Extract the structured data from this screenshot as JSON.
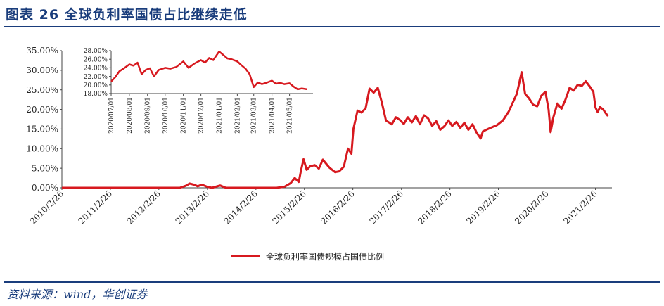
{
  "figure": {
    "title": "图表 26   全球负利率国债占比继续走低",
    "source": "资料来源：wind，华创证券"
  },
  "colors": {
    "line": "#d7191f",
    "accent": "#1a3d7c"
  },
  "chart_data": [
    {
      "type": "line",
      "title": "",
      "xlabel": "",
      "ylabel": "",
      "ylim": [
        0,
        35
      ],
      "yticks": [
        "0.00%",
        "5.00%",
        "10.00%",
        "15.00%",
        "20.00%",
        "25.00%",
        "30.00%",
        "35.00%"
      ],
      "xticks": [
        "2010/2/26",
        "2011/2/26",
        "2012/2/26",
        "2013/2/26",
        "2014/2/26",
        "2015/2/26",
        "2016/2/26",
        "2017/2/26",
        "2018/2/26",
        "2019/2/26",
        "2020/2/26",
        "2021/2/26"
      ],
      "legend": "bottom-center",
      "grid": false,
      "series": [
        {
          "name": "全球负利率国债规模占国债比例",
          "color": "#d7191f",
          "points": [
            [
              "2010-02-26",
              0.0
            ],
            [
              "2012-08-01",
              0.0
            ],
            [
              "2012-09-15",
              0.5
            ],
            [
              "2012-10-15",
              1.1
            ],
            [
              "2012-11-15",
              0.8
            ],
            [
              "2012-12-15",
              0.4
            ],
            [
              "2013-01-15",
              0.8
            ],
            [
              "2013-02-20",
              0.3
            ],
            [
              "2013-04-01",
              0.0
            ],
            [
              "2013-06-01",
              0.6
            ],
            [
              "2013-07-15",
              0.0
            ],
            [
              "2014-08-01",
              0.0
            ],
            [
              "2014-10-01",
              0.3
            ],
            [
              "2014-11-15",
              1.2
            ],
            [
              "2014-12-15",
              2.5
            ],
            [
              "2015-01-15",
              1.5
            ],
            [
              "2015-02-01",
              4.5
            ],
            [
              "2015-02-20",
              7.3
            ],
            [
              "2015-03-15",
              4.6
            ],
            [
              "2015-04-10",
              5.5
            ],
            [
              "2015-05-15",
              5.8
            ],
            [
              "2015-06-15",
              4.9
            ],
            [
              "2015-07-15",
              7.2
            ],
            [
              "2015-09-01",
              5.2
            ],
            [
              "2015-10-15",
              4.0
            ],
            [
              "2015-11-15",
              4.2
            ],
            [
              "2015-12-20",
              5.4
            ],
            [
              "2016-01-20",
              10.0
            ],
            [
              "2016-02-15",
              8.7
            ],
            [
              "2016-03-01",
              15.0
            ],
            [
              "2016-04-01",
              19.7
            ],
            [
              "2016-05-01",
              19.2
            ],
            [
              "2016-06-01",
              20.3
            ],
            [
              "2016-07-01",
              25.3
            ],
            [
              "2016-08-01",
              24.3
            ],
            [
              "2016-09-01",
              25.5
            ],
            [
              "2016-10-01",
              21.8
            ],
            [
              "2016-11-01",
              17.2
            ],
            [
              "2016-12-15",
              16.2
            ],
            [
              "2017-01-15",
              18.0
            ],
            [
              "2017-02-15",
              17.3
            ],
            [
              "2017-03-15",
              16.3
            ],
            [
              "2017-04-15",
              18.0
            ],
            [
              "2017-05-15",
              16.7
            ],
            [
              "2017-06-15",
              18.3
            ],
            [
              "2017-07-15",
              16.2
            ],
            [
              "2017-08-15",
              18.5
            ],
            [
              "2017-09-15",
              17.7
            ],
            [
              "2017-10-15",
              15.8
            ],
            [
              "2017-11-15",
              17.0
            ],
            [
              "2017-12-15",
              14.8
            ],
            [
              "2018-01-15",
              15.7
            ],
            [
              "2018-02-15",
              17.2
            ],
            [
              "2018-03-15",
              15.8
            ],
            [
              "2018-04-15",
              16.8
            ],
            [
              "2018-05-15",
              15.3
            ],
            [
              "2018-06-15",
              16.6
            ],
            [
              "2018-07-15",
              14.8
            ],
            [
              "2018-08-15",
              16.2
            ],
            [
              "2018-09-15",
              14.1
            ],
            [
              "2018-10-15",
              12.6
            ],
            [
              "2018-11-01",
              14.4
            ],
            [
              "2018-12-15",
              15.1
            ],
            [
              "2019-02-15",
              16.0
            ],
            [
              "2019-04-01",
              17.2
            ],
            [
              "2019-05-15",
              19.5
            ],
            [
              "2019-06-15",
              21.8
            ],
            [
              "2019-07-15",
              24.0
            ],
            [
              "2019-08-20",
              29.5
            ],
            [
              "2019-09-15",
              24.0
            ],
            [
              "2019-10-15",
              22.8
            ],
            [
              "2019-11-15",
              21.2
            ],
            [
              "2019-12-15",
              20.8
            ],
            [
              "2020-01-15",
              23.5
            ],
            [
              "2020-02-15",
              24.5
            ],
            [
              "2020-03-10",
              20.0
            ],
            [
              "2020-03-25",
              14.2
            ],
            [
              "2020-04-15",
              18.0
            ],
            [
              "2020-05-15",
              21.5
            ],
            [
              "2020-06-15",
              20.2
            ],
            [
              "2020-07-15",
              22.5
            ],
            [
              "2020-08-15",
              25.5
            ],
            [
              "2020-09-15",
              24.8
            ],
            [
              "2020-10-15",
              26.3
            ],
            [
              "2020-11-15",
              26.0
            ],
            [
              "2020-12-15",
              27.2
            ],
            [
              "2021-01-15",
              25.8
            ],
            [
              "2021-02-10",
              24.5
            ],
            [
              "2021-02-26",
              20.5
            ],
            [
              "2021-03-15",
              19.3
            ],
            [
              "2021-04-01",
              20.6
            ],
            [
              "2021-04-25",
              20.0
            ],
            [
              "2021-05-15",
              19.0
            ],
            [
              "2021-05-31",
              18.3
            ]
          ]
        }
      ]
    },
    {
      "type": "line",
      "title": "",
      "xlabel": "",
      "ylabel": "",
      "ylim": [
        18,
        28
      ],
      "yticks": [
        "18.00%",
        "20.00%",
        "22.00%",
        "24.00%",
        "26.00%",
        "28.00%"
      ],
      "xticks": [
        "2020/07/01",
        "2020/08/01",
        "2020/09/01",
        "2020/10/01",
        "2020/11/01",
        "2020/12/01",
        "2021/01/01",
        "2021/02/01",
        "2021/03/01",
        "2021/04/01",
        "2021/05/01"
      ],
      "grid": false,
      "series": [
        {
          "color": "#d7191f",
          "points": [
            [
              "2020-07-01",
              20.8
            ],
            [
              "2020-07-08",
              21.8
            ],
            [
              "2020-07-15",
              23.2
            ],
            [
              "2020-07-22",
              23.8
            ],
            [
              "2020-08-01",
              24.8
            ],
            [
              "2020-08-08",
              24.5
            ],
            [
              "2020-08-15",
              25.2
            ],
            [
              "2020-08-22",
              22.5
            ],
            [
              "2020-08-29",
              23.5
            ],
            [
              "2020-09-05",
              23.9
            ],
            [
              "2020-09-12",
              22.0
            ],
            [
              "2020-09-20",
              23.5
            ],
            [
              "2020-10-01",
              24.0
            ],
            [
              "2020-10-10",
              23.8
            ],
            [
              "2020-10-20",
              24.2
            ],
            [
              "2020-11-01",
              25.5
            ],
            [
              "2020-11-10",
              24.0
            ],
            [
              "2020-11-20",
              25.0
            ],
            [
              "2020-12-01",
              25.8
            ],
            [
              "2020-12-08",
              25.2
            ],
            [
              "2020-12-15",
              26.3
            ],
            [
              "2020-12-22",
              25.8
            ],
            [
              "2021-01-01",
              27.8
            ],
            [
              "2021-01-08",
              27.0
            ],
            [
              "2021-01-15",
              26.2
            ],
            [
              "2021-01-22",
              26.0
            ],
            [
              "2021-02-01",
              25.5
            ],
            [
              "2021-02-08",
              24.6
            ],
            [
              "2021-02-15",
              23.8
            ],
            [
              "2021-02-22",
              22.5
            ],
            [
              "2021-03-01",
              19.5
            ],
            [
              "2021-03-08",
              20.6
            ],
            [
              "2021-03-15",
              20.2
            ],
            [
              "2021-03-22",
              20.5
            ],
            [
              "2021-04-01",
              21.0
            ],
            [
              "2021-04-08",
              20.3
            ],
            [
              "2021-04-15",
              20.5
            ],
            [
              "2021-04-22",
              20.2
            ],
            [
              "2021-05-01",
              20.4
            ],
            [
              "2021-05-08",
              19.6
            ],
            [
              "2021-05-15",
              19.0
            ],
            [
              "2021-05-22",
              19.2
            ],
            [
              "2021-05-31",
              19.0
            ]
          ]
        }
      ]
    }
  ]
}
